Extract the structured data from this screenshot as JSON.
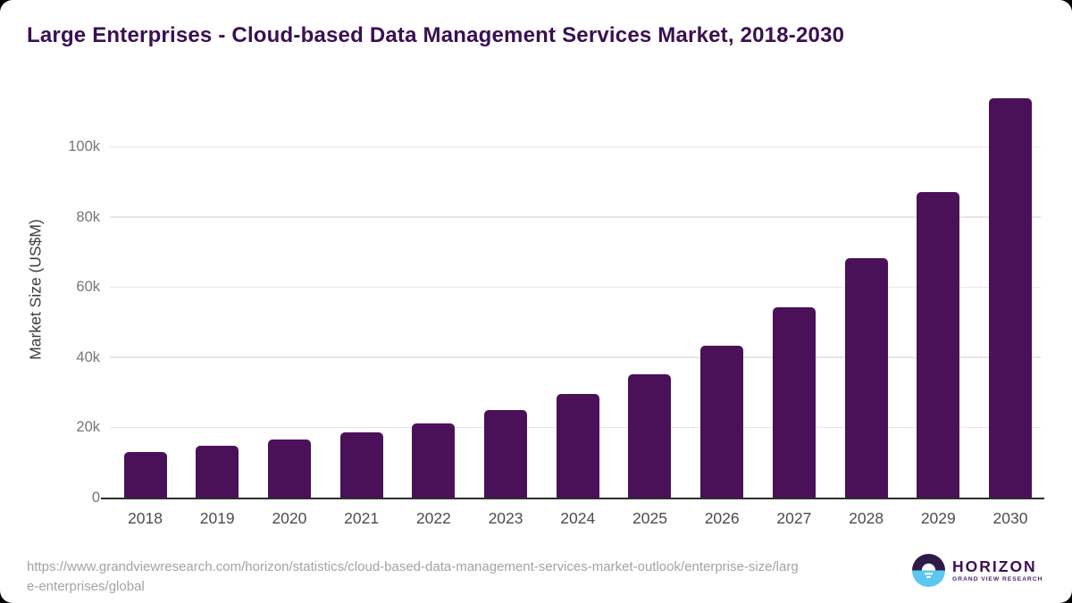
{
  "page": {
    "source_url_line1": "https://www.grandviewresearch.com/horizon/statistics/cloud-based-data-management-services-market-outlook/enterprise-size/larg",
    "source_url_line2": "e-enterprises/global"
  },
  "logo": {
    "name": "HORIZON",
    "subtitle": "GRAND VIEW RESEARCH"
  },
  "colors": {
    "bar": "#4a1158",
    "title": "#3a1053",
    "gridline": "#e6e6e6",
    "axis_line": "#2e2e2e",
    "y_label": "#767676",
    "x_label": "#4c4c4c",
    "url_text": "#a3a3a3",
    "logo_purple": "#3c1053",
    "logo_purple_dark": "#2e1a47",
    "logo_blue": "#5bc6f0"
  },
  "chart_data": {
    "type": "bar",
    "title": "Large Enterprises - Cloud-based Data Management Services Market, 2018-2030",
    "categories": [
      "2018",
      "2019",
      "2020",
      "2021",
      "2022",
      "2023",
      "2024",
      "2025",
      "2026",
      "2027",
      "2028",
      "2029",
      "2030"
    ],
    "values": [
      13200,
      15000,
      16800,
      18900,
      21500,
      25200,
      29700,
      35500,
      43600,
      54400,
      68500,
      87400,
      113900
    ],
    "xlabel": "",
    "ylabel": "Market Size (US$M)",
    "ylim": [
      0,
      116000
    ],
    "yticks": {
      "values": [
        0,
        20000,
        40000,
        60000,
        80000,
        100000
      ],
      "labels": [
        "0",
        "20k",
        "40k",
        "60k",
        "80k",
        "100k"
      ]
    },
    "grid": "horizontal",
    "legend": "none",
    "bar_color": "#4a1158"
  }
}
